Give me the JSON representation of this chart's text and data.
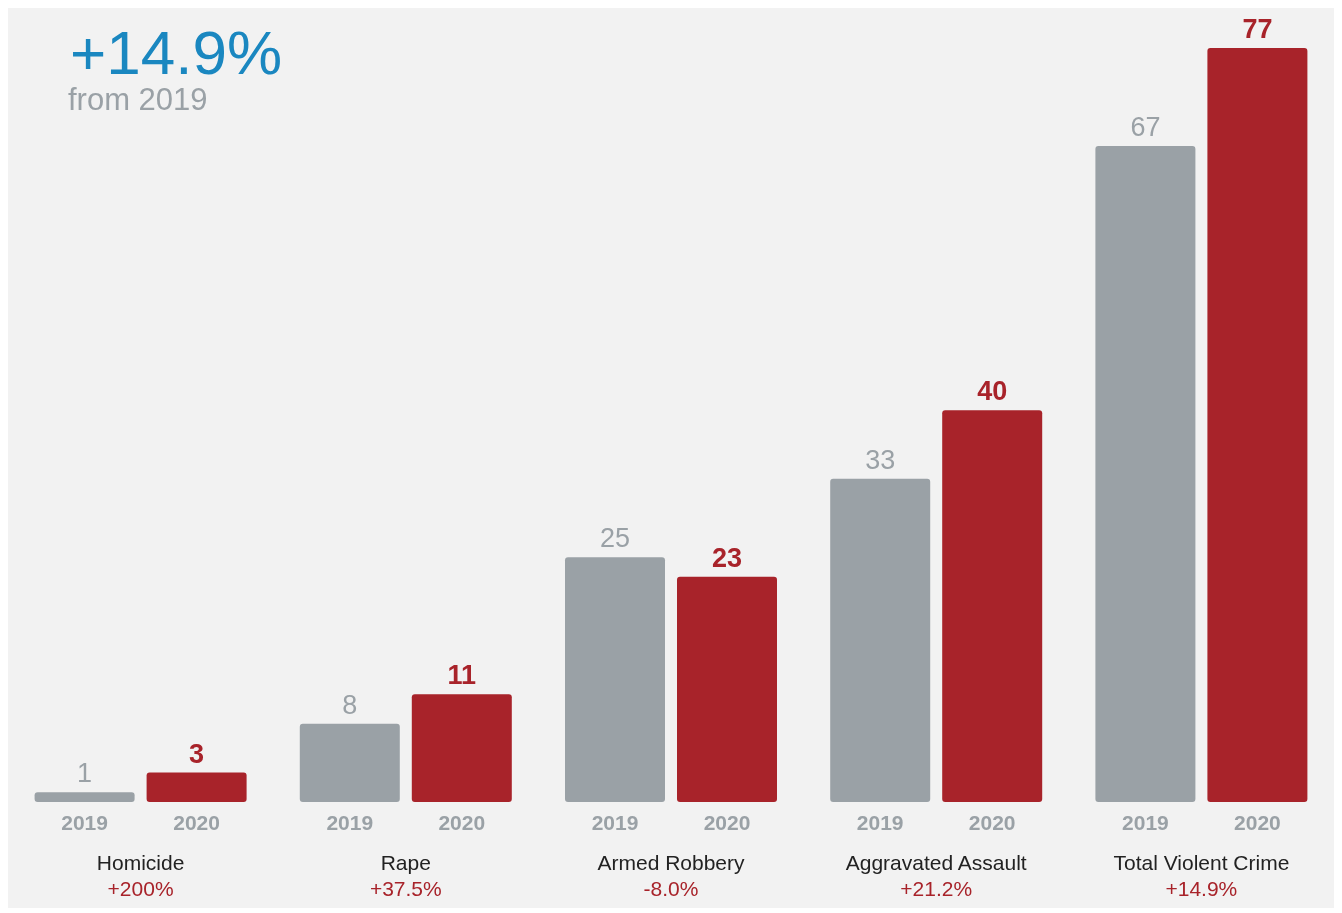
{
  "chart_data": {
    "type": "bar",
    "title": "+14.9%",
    "subtitle": "from 2019",
    "categories": [
      "Homicide",
      "Rape",
      "Armed Robbery",
      "Aggravated Assault",
      "Total Violent Crime"
    ],
    "series": [
      {
        "name": "2019",
        "color": "#9aa1a6",
        "values": [
          1,
          8,
          25,
          33,
          67
        ]
      },
      {
        "name": "2020",
        "color": "#a8232a",
        "values": [
          3,
          11,
          23,
          40,
          77
        ]
      }
    ],
    "data_labels": true,
    "legend": false,
    "annotations": [
      "+200%",
      "+37.5%",
      "-8.0%",
      "+21.2%",
      "+14.9%"
    ]
  }
}
